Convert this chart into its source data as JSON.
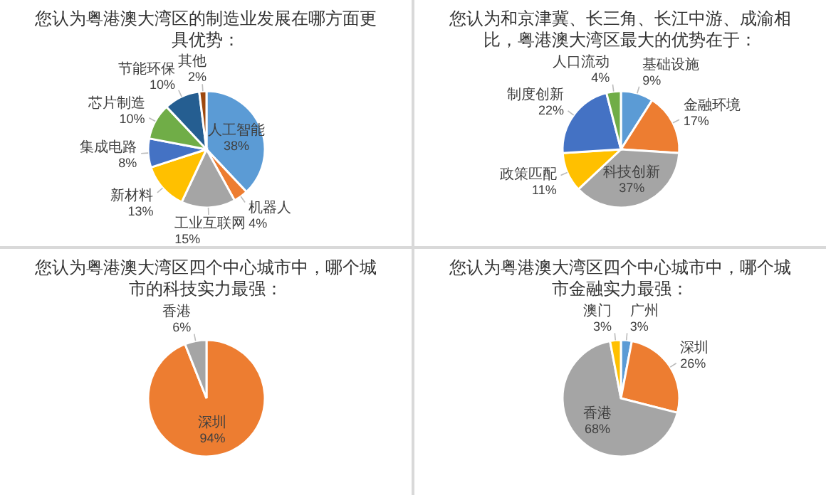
{
  "chart_data": [
    {
      "type": "pie",
      "title": "您认为粤港澳大湾区的制造业发展在哪方面更具优势：",
      "categories": [
        "人工智能",
        "机器人",
        "工业互联网",
        "新材料",
        "集成电路",
        "芯片制造",
        "节能环保",
        "其他"
      ],
      "values": [
        38,
        4,
        15,
        13,
        8,
        10,
        10,
        2
      ],
      "value_labels": [
        "38%",
        "4%",
        "15%",
        "13%",
        "8%",
        "10%",
        "10%",
        "2%"
      ],
      "colors": [
        "#5b9bd5",
        "#ed7d31",
        "#a5a5a5",
        "#ffc000",
        "#4472c4",
        "#70ad47",
        "#255e91",
        "#9e480e"
      ]
    },
    {
      "type": "pie",
      "title": "您认为和京津冀、长三角、长江中游、成渝相比，粤港澳大湾区最大的优势在于：",
      "categories": [
        "基础设施",
        "金融环境",
        "科技创新",
        "政策匹配",
        "制度创新",
        "人口流动"
      ],
      "values": [
        9,
        17,
        37,
        11,
        22,
        4
      ],
      "value_labels": [
        "9%",
        "17%",
        "37%",
        "11%",
        "22%",
        "4%"
      ],
      "colors": [
        "#5b9bd5",
        "#ed7d31",
        "#a5a5a5",
        "#ffc000",
        "#4472c4",
        "#70ad47"
      ]
    },
    {
      "type": "pie",
      "title": "您认为粤港澳大湾区四个中心城市中，哪个城市的科技实力最强：",
      "categories": [
        "深圳",
        "香港"
      ],
      "values": [
        94,
        6
      ],
      "value_labels": [
        "94%",
        "6%"
      ],
      "colors": [
        "#ed7d31",
        "#a5a5a5"
      ]
    },
    {
      "type": "pie",
      "title": "您认为粤港澳大湾区四个中心城市中，哪个城市金融实力最强：",
      "categories": [
        "广州",
        "深圳",
        "香港",
        "澳门"
      ],
      "values": [
        3,
        26,
        68,
        3
      ],
      "value_labels": [
        "3%",
        "26%",
        "68%",
        "3%"
      ],
      "colors": [
        "#5b9bd5",
        "#ed7d31",
        "#a5a5a5",
        "#ffc000"
      ]
    }
  ]
}
